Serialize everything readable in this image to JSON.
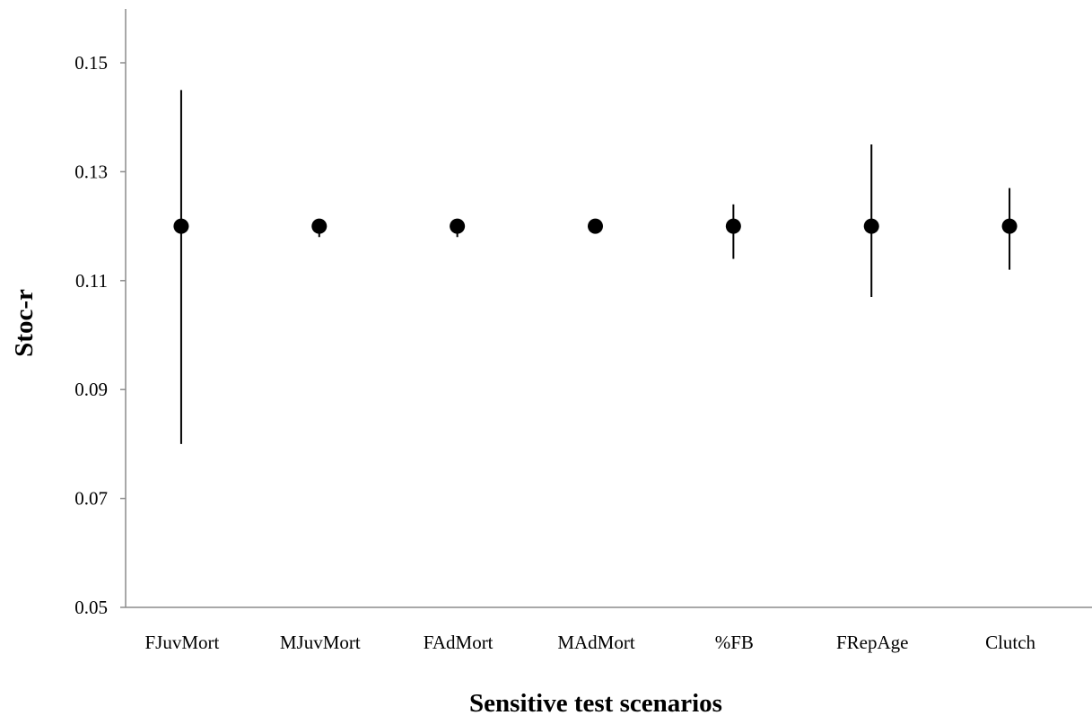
{
  "chart_data": {
    "type": "scatter",
    "title": "",
    "xlabel": "Sensitive test scenarios",
    "ylabel": "Stoc-r",
    "ylim": [
      0.05,
      0.16
    ],
    "yticks": [
      "0.05",
      "0.07",
      "0.09",
      "0.11",
      "0.13",
      "0.15"
    ],
    "ytick_values": [
      0.05,
      0.07,
      0.09,
      0.11,
      0.13,
      0.15
    ],
    "grid": false,
    "legend": "none",
    "categories": [
      "FJuvMort",
      "MJuvMort",
      "FAdMort",
      "MAdMort",
      "%FB",
      "FRepAge",
      "Clutch"
    ],
    "values": [
      0.12,
      0.12,
      0.12,
      0.12,
      0.12,
      0.12,
      0.12
    ],
    "error_low": [
      0.08,
      0.118,
      0.118,
      0.119,
      0.114,
      0.107,
      0.112
    ],
    "error_high": [
      0.145,
      0.121,
      0.121,
      0.121,
      0.124,
      0.135,
      0.127
    ],
    "marker_color": "#000000",
    "axis_color": "#8c8c8c"
  }
}
